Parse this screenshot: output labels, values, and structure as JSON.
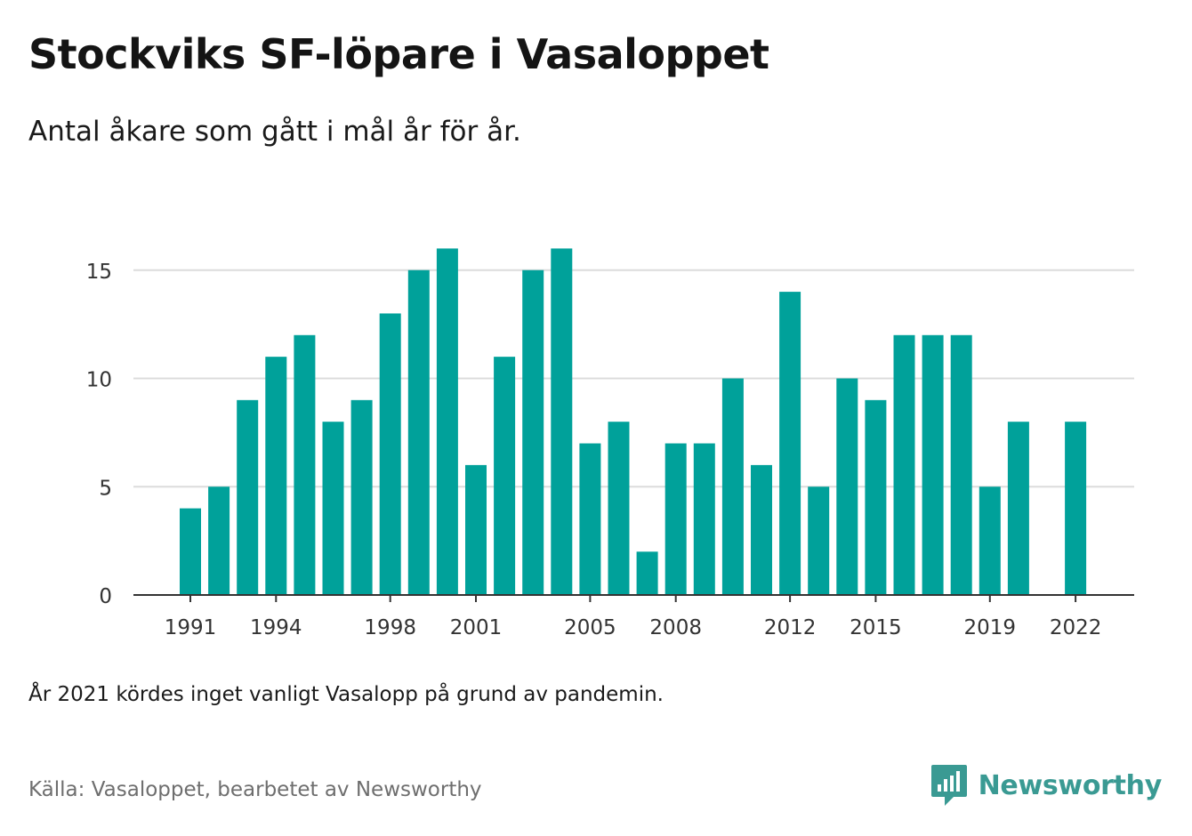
{
  "title": "Stockviks SF-löpare i Vasaloppet",
  "subtitle": "Antal åkare som gått i mål år för år.",
  "note": "År 2021 kördes inget vanligt Vasalopp på grund av pandemin.",
  "source": "Källa: Vasaloppet, bearbetet av Newsworthy",
  "brand": {
    "name": "Newsworthy",
    "color": "#3a9a93"
  },
  "chart_data": {
    "type": "bar",
    "color": "#00a19a",
    "categories": [
      1991,
      1992,
      1993,
      1994,
      1995,
      1996,
      1997,
      1998,
      1999,
      2000,
      2001,
      2002,
      2003,
      2004,
      2005,
      2006,
      2007,
      2008,
      2009,
      2010,
      2011,
      2012,
      2013,
      2014,
      2015,
      2016,
      2017,
      2018,
      2019,
      2020,
      2021,
      2022
    ],
    "values": [
      4,
      5,
      9,
      11,
      12,
      8,
      9,
      13,
      15,
      16,
      6,
      11,
      15,
      16,
      7,
      8,
      2,
      7,
      7,
      10,
      6,
      14,
      5,
      10,
      9,
      12,
      12,
      12,
      5,
      8,
      null,
      8
    ],
    "x_tick_labels": [
      "1991",
      "1994",
      "1998",
      "2001",
      "2005",
      "2008",
      "2012",
      "2015",
      "2019",
      "2022"
    ],
    "y_ticks": [
      0,
      5,
      10,
      15
    ],
    "ylim": [
      0,
      16
    ],
    "grid": true,
    "xlabel": "",
    "ylabel": ""
  }
}
